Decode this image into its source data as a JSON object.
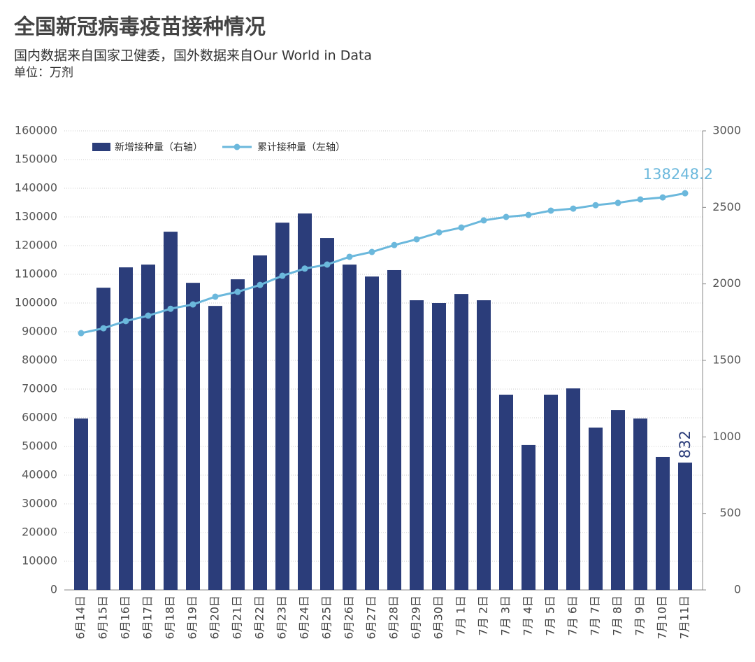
{
  "chart_data": {
    "type": "bar-line",
    "title": "全国新冠病毒疫苗接种情况",
    "subtitle": "国内数据来自国家卫健委，国外数据来自Our World in Data",
    "unit": "单位：万剂",
    "categories": [
      "6月14日",
      "6月15日",
      "6月16日",
      "6月17日",
      "6月18日",
      "6月19日",
      "6月20日",
      "6月21日",
      "6月22日",
      "6月23日",
      "6月24日",
      "6月25日",
      "6月26日",
      "6月27日",
      "6月28日",
      "6月29日",
      "6月30日",
      "7月 1日",
      "7月 2日",
      "7月 3日",
      "7月 4日",
      "7月 5日",
      "7月 6日",
      "7月 7日",
      "7月 8日",
      "7月 9日",
      "7月10日",
      "7月11日"
    ],
    "series": [
      {
        "name": "新增接种量（右轴）",
        "type": "bar",
        "axis": "y2",
        "color": "#2b3d7a",
        "values": [
          1120,
          1975,
          2108,
          2126,
          2341,
          2007,
          1856,
          2030,
          2186,
          2400,
          2460,
          2300,
          2126,
          2048,
          2090,
          1893,
          1875,
          1934,
          1893,
          1276,
          947,
          1276,
          1317,
          1061,
          1175,
          1120,
          869,
          832
        ]
      },
      {
        "name": "累计接种量（左轴）",
        "type": "line",
        "axis": "y",
        "color": "#6bb8dc",
        "values": [
          89500,
          91200,
          93700,
          95600,
          98000,
          99500,
          102200,
          103900,
          106300,
          109500,
          112000,
          113400,
          116100,
          117800,
          120200,
          122200,
          124600,
          126300,
          128800,
          130000,
          130700,
          132200,
          132900,
          134100,
          134900,
          136100,
          136800,
          138248.2
        ]
      }
    ],
    "data_labels": "last",
    "ylim": [
      0,
      160000
    ],
    "yticks": [
      0,
      10000,
      20000,
      30000,
      40000,
      50000,
      60000,
      70000,
      80000,
      90000,
      100000,
      110000,
      120000,
      130000,
      140000,
      150000,
      160000
    ],
    "y2lim": [
      0,
      3000
    ],
    "y2ticks": [
      0,
      500,
      1000,
      1500,
      2000,
      2500,
      3000
    ],
    "grid": true,
    "legend": "top-left"
  }
}
